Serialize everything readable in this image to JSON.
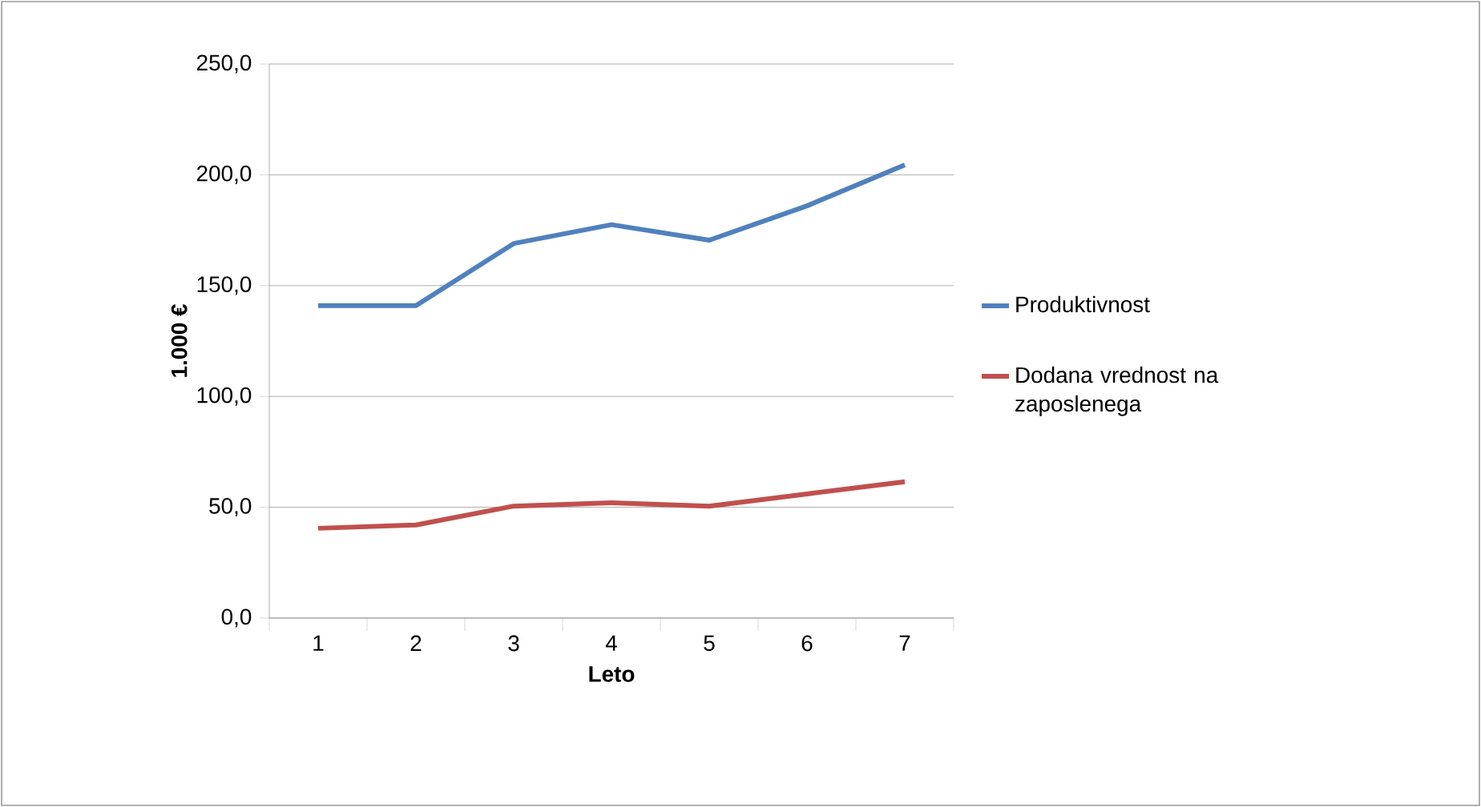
{
  "chart_data": {
    "type": "line",
    "categories": [
      "1",
      "2",
      "3",
      "4",
      "5",
      "6",
      "7"
    ],
    "series": [
      {
        "name": "Produktivnost",
        "color": "#4f81bd",
        "values": [
          141,
          141,
          169,
          177.5,
          170.5,
          186,
          204.5
        ]
      },
      {
        "name": "Dodana vrednost na zaposlenega",
        "color": "#c0504d",
        "values": [
          40.5,
          42,
          50.5,
          52,
          50.5,
          56,
          61.5
        ]
      }
    ],
    "xlabel": "Leto",
    "ylabel": "1.000 €",
    "ylim": [
      0,
      250
    ],
    "yticks": [
      {
        "value": 0,
        "label": "0,0"
      },
      {
        "value": 50,
        "label": "50,0"
      },
      {
        "value": 100,
        "label": "100,0"
      },
      {
        "value": 150,
        "label": "150,0"
      },
      {
        "value": 200,
        "label": "200,0"
      },
      {
        "value": 250,
        "label": "250,0"
      }
    ],
    "grid": "y",
    "legend": "right"
  }
}
